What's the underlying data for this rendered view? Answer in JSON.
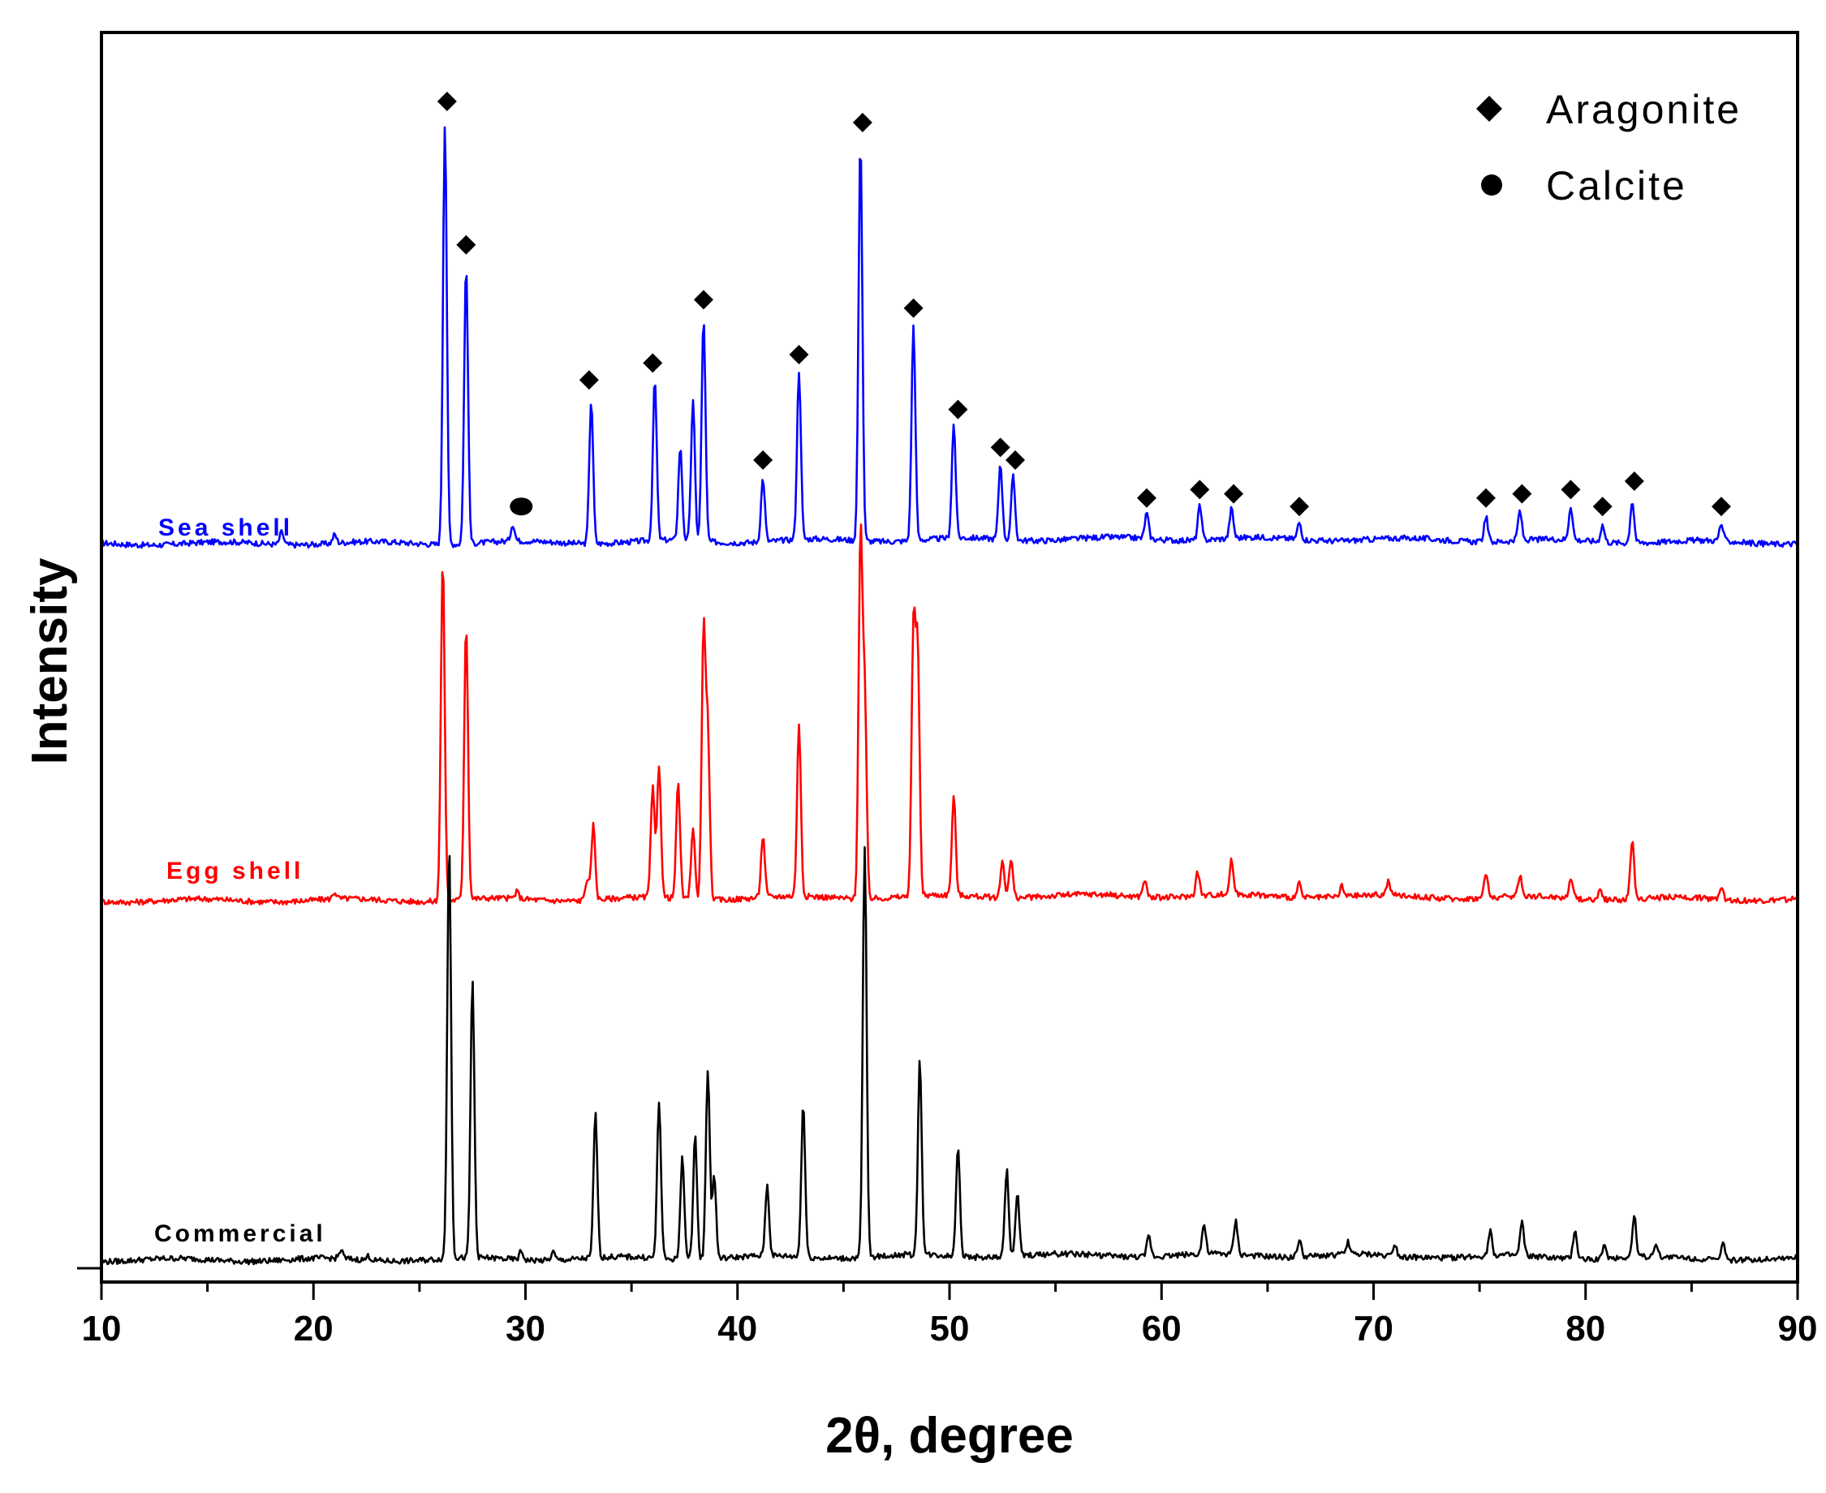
{
  "chart_data": {
    "type": "line",
    "xlabel": "2θ, degree",
    "ylabel": "Intensity",
    "xlim": [
      10,
      90
    ],
    "x_ticks": [
      10,
      20,
      30,
      40,
      50,
      60,
      70,
      80,
      90
    ],
    "y_tick_labels": false,
    "grid": false,
    "legend": {
      "placement": "top-right",
      "entries": [
        {
          "marker": "diamond",
          "label": "Aragonite"
        },
        {
          "marker": "circle",
          "label": "Calcite"
        }
      ]
    },
    "series": [
      {
        "name": "Sea shell",
        "color": "#0000ff",
        "peaks": [
          {
            "x": 18.5,
            "y": 3
          },
          {
            "x": 21.0,
            "y": 2
          },
          {
            "x": 26.2,
            "y": 100
          },
          {
            "x": 27.2,
            "y": 66
          },
          {
            "x": 29.4,
            "y": 4
          },
          {
            "x": 33.1,
            "y": 34
          },
          {
            "x": 36.1,
            "y": 38
          },
          {
            "x": 37.3,
            "y": 22
          },
          {
            "x": 37.9,
            "y": 33
          },
          {
            "x": 38.4,
            "y": 53
          },
          {
            "x": 41.2,
            "y": 15
          },
          {
            "x": 42.9,
            "y": 40
          },
          {
            "x": 45.8,
            "y": 95
          },
          {
            "x": 48.3,
            "y": 51
          },
          {
            "x": 50.2,
            "y": 27
          },
          {
            "x": 52.4,
            "y": 18
          },
          {
            "x": 53.0,
            "y": 15
          },
          {
            "x": 59.3,
            "y": 6
          },
          {
            "x": 61.8,
            "y": 8
          },
          {
            "x": 63.3,
            "y": 7
          },
          {
            "x": 66.5,
            "y": 4
          },
          {
            "x": 75.3,
            "y": 6
          },
          {
            "x": 76.9,
            "y": 7
          },
          {
            "x": 79.3,
            "y": 8
          },
          {
            "x": 80.8,
            "y": 4
          },
          {
            "x": 82.2,
            "y": 10
          },
          {
            "x": 86.4,
            "y": 4
          }
        ]
      },
      {
        "name": "Egg shell",
        "color": "#ff0000",
        "peaks": [
          {
            "x": 21.0,
            "y": 2
          },
          {
            "x": 26.1,
            "y": 100
          },
          {
            "x": 27.2,
            "y": 81
          },
          {
            "x": 29.6,
            "y": 2
          },
          {
            "x": 32.9,
            "y": 6
          },
          {
            "x": 33.2,
            "y": 22
          },
          {
            "x": 36.0,
            "y": 32
          },
          {
            "x": 36.3,
            "y": 39
          },
          {
            "x": 37.2,
            "y": 34
          },
          {
            "x": 37.9,
            "y": 21
          },
          {
            "x": 38.4,
            "y": 78
          },
          {
            "x": 38.6,
            "y": 48
          },
          {
            "x": 41.2,
            "y": 18
          },
          {
            "x": 42.9,
            "y": 50
          },
          {
            "x": 45.8,
            "y": 105
          },
          {
            "x": 46.0,
            "y": 58
          },
          {
            "x": 48.3,
            "y": 78
          },
          {
            "x": 48.5,
            "y": 70
          },
          {
            "x": 50.2,
            "y": 29
          },
          {
            "x": 52.5,
            "y": 11
          },
          {
            "x": 52.9,
            "y": 11
          },
          {
            "x": 59.2,
            "y": 5
          },
          {
            "x": 61.7,
            "y": 7
          },
          {
            "x": 63.3,
            "y": 10
          },
          {
            "x": 66.5,
            "y": 4
          },
          {
            "x": 68.5,
            "y": 3
          },
          {
            "x": 70.7,
            "y": 4
          },
          {
            "x": 75.3,
            "y": 7
          },
          {
            "x": 76.9,
            "y": 6
          },
          {
            "x": 79.3,
            "y": 6
          },
          {
            "x": 80.7,
            "y": 3
          },
          {
            "x": 82.2,
            "y": 17
          },
          {
            "x": 86.4,
            "y": 4
          }
        ]
      },
      {
        "name": "Commercial",
        "color": "#000000",
        "peaks": [
          {
            "x": 21.3,
            "y": 2
          },
          {
            "x": 22.6,
            "y": 1
          },
          {
            "x": 26.4,
            "y": 100
          },
          {
            "x": 27.5,
            "y": 67
          },
          {
            "x": 29.8,
            "y": 2
          },
          {
            "x": 31.3,
            "y": 2
          },
          {
            "x": 33.3,
            "y": 35
          },
          {
            "x": 36.3,
            "y": 38
          },
          {
            "x": 37.4,
            "y": 25
          },
          {
            "x": 38.0,
            "y": 30
          },
          {
            "x": 38.6,
            "y": 46
          },
          {
            "x": 38.9,
            "y": 20
          },
          {
            "x": 41.4,
            "y": 17
          },
          {
            "x": 43.1,
            "y": 37
          },
          {
            "x": 46.0,
            "y": 99
          },
          {
            "x": 48.6,
            "y": 47
          },
          {
            "x": 50.4,
            "y": 27
          },
          {
            "x": 52.7,
            "y": 21
          },
          {
            "x": 53.2,
            "y": 15
          },
          {
            "x": 59.4,
            "y": 5
          },
          {
            "x": 62.0,
            "y": 7
          },
          {
            "x": 63.5,
            "y": 8
          },
          {
            "x": 66.5,
            "y": 4
          },
          {
            "x": 68.8,
            "y": 3
          },
          {
            "x": 71.0,
            "y": 3
          },
          {
            "x": 75.5,
            "y": 6
          },
          {
            "x": 77.0,
            "y": 8
          },
          {
            "x": 79.5,
            "y": 7
          },
          {
            "x": 80.9,
            "y": 3
          },
          {
            "x": 82.3,
            "y": 10
          },
          {
            "x": 83.3,
            "y": 3
          },
          {
            "x": 86.5,
            "y": 4
          }
        ]
      }
    ],
    "annotations": [
      {
        "series": "Sea shell",
        "marker": "diamond",
        "x": [
          26.3,
          27.2,
          33.0,
          36.0,
          38.4,
          41.2,
          42.9,
          45.9,
          48.3,
          50.4,
          52.4,
          53.1,
          59.3,
          61.8,
          63.4,
          66.5,
          75.3,
          77.0,
          79.3,
          80.8,
          82.3,
          86.4
        ]
      },
      {
        "series": "Sea shell",
        "marker": "circle",
        "x": [
          29.8
        ]
      }
    ]
  }
}
